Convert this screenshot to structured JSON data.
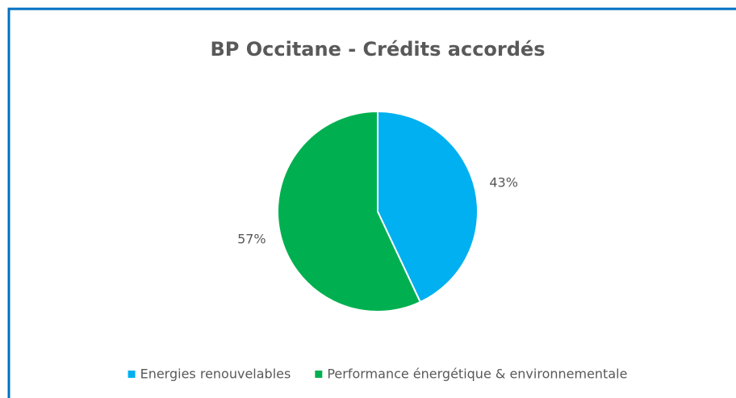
{
  "chart_data": {
    "type": "pie",
    "title": "BP Occitane - Crédits accordés",
    "categories": [
      "Energies renouvelables",
      "Performance énergétique & environnementale"
    ],
    "values": [
      43,
      57
    ],
    "value_labels": [
      "43%",
      "57%"
    ],
    "colors": [
      "#00b0f0",
      "#00b050"
    ],
    "legend": "bottom"
  }
}
